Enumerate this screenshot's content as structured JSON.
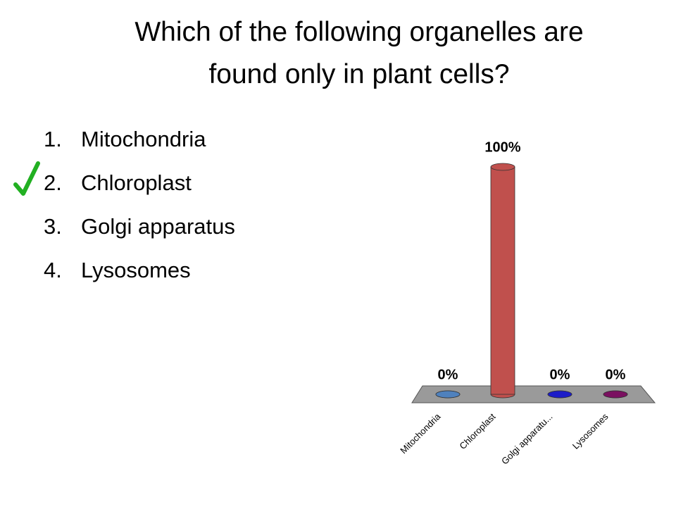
{
  "title": "Which of the following organelles are found only in plant cells?",
  "list": {
    "numbers": [
      "1.",
      "2.",
      "3.",
      "4."
    ],
    "items": [
      "Mitochondria",
      "Chloroplast",
      "Golgi apparatus",
      "Lysosomes"
    ]
  },
  "chart_data": {
    "type": "bar",
    "categories": [
      "Mitochondria",
      "Chloroplast",
      "Golgi apparatu...",
      "Lysosomes"
    ],
    "values": [
      0,
      100,
      0,
      0
    ],
    "value_labels": [
      "0%",
      "100%",
      "0%",
      "0%"
    ],
    "colors": [
      "#4f81bd",
      "#c0504d",
      "#1c1cc8",
      "#7a1060"
    ],
    "ylim": [
      0,
      100
    ]
  }
}
